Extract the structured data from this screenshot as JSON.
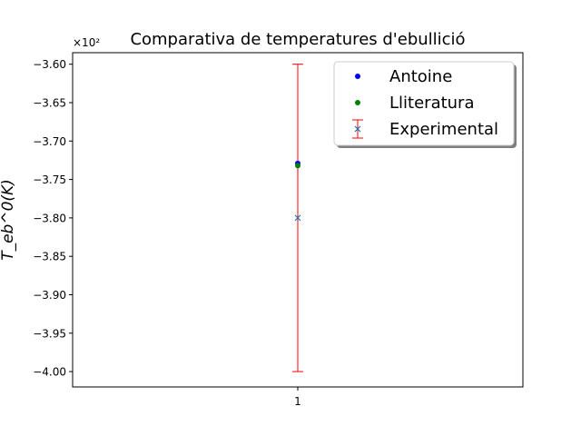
{
  "chart_data": {
    "type": "scatter",
    "title": "Comparativa de temperatures d'ebullició",
    "xlabel": "",
    "ylabel": "T_eb^0(K)",
    "y_offset_label": "×10²",
    "x_ticks": [
      "1"
    ],
    "y_ticks": [
      "−3.60",
      "−3.65",
      "−3.70",
      "−3.75",
      "−3.80",
      "−3.85",
      "−3.90",
      "−3.95",
      "−4.00"
    ],
    "y_tick_values": [
      -3.6,
      -3.65,
      -3.7,
      -3.75,
      -3.8,
      -3.85,
      -3.9,
      -3.95,
      -4.0
    ],
    "xlim": [
      0.5,
      1.5
    ],
    "ylim": [
      -4.02,
      -3.585
    ],
    "grid": false,
    "legend_position": "top-right",
    "series": [
      {
        "name": "Antoine",
        "kind": "point",
        "marker": "circle",
        "color": "#0000ff",
        "x": [
          1
        ],
        "y": [
          -3.729
        ]
      },
      {
        "name": "Lliteratura",
        "kind": "point",
        "marker": "circle",
        "color": "#008000",
        "x": [
          1
        ],
        "y": [
          -3.732
        ]
      },
      {
        "name": "Experimental",
        "kind": "errorbar",
        "marker": "x",
        "color": "#1f77b4",
        "ecolor": "#ff0000",
        "x": [
          1
        ],
        "y": [
          -3.8
        ],
        "yerr": [
          0.2
        ]
      }
    ]
  }
}
